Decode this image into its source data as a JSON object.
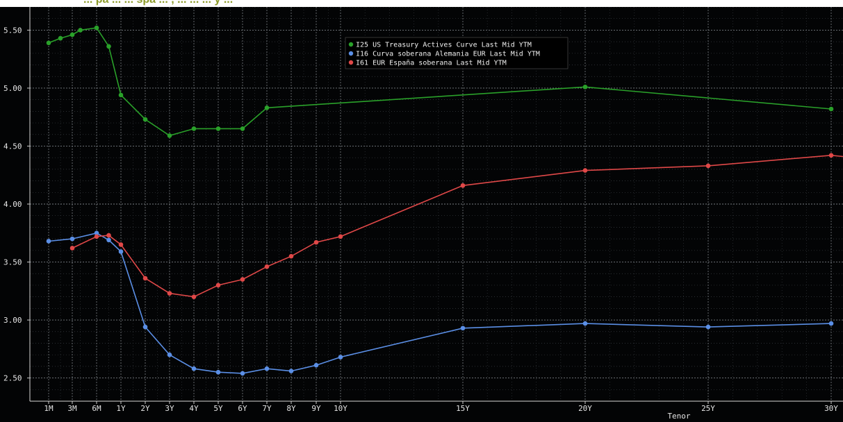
{
  "header": {
    "title_fragment": "... pa ... ... spa ... ,  ... ... ... y ..."
  },
  "chart_data": {
    "type": "line",
    "xlabel": "Tenor",
    "ylabel": "",
    "ylim": [
      2.3,
      5.7
    ],
    "yticks": [
      "5.50",
      "5.00",
      "4.50",
      "4.00",
      "3.50",
      "3.00",
      "2.50"
    ],
    "ytick_values": [
      5.5,
      5.0,
      4.5,
      4.0,
      3.5,
      3.0,
      2.5
    ],
    "xticks": [
      {
        "label": "1M",
        "t": 0.0833
      },
      {
        "label": "3M",
        "t": 0.25
      },
      {
        "label": "6M",
        "t": 0.5
      },
      {
        "label": "1Y",
        "t": 1
      },
      {
        "label": "2Y",
        "t": 2
      },
      {
        "label": "3Y",
        "t": 3
      },
      {
        "label": "4Y",
        "t": 4
      },
      {
        "label": "5Y",
        "t": 5
      },
      {
        "label": "6Y",
        "t": 6
      },
      {
        "label": "7Y",
        "t": 7
      },
      {
        "label": "8Y",
        "t": 8
      },
      {
        "label": "9Y",
        "t": 9
      },
      {
        "label": "10Y",
        "t": 10
      },
      {
        "label": "15Y",
        "t": 15
      },
      {
        "label": "20Y",
        "t": 20
      },
      {
        "label": "25Y",
        "t": 25
      },
      {
        "label": "30Y",
        "t": 30
      }
    ],
    "grid": true,
    "legend_position": "top-center",
    "series": [
      {
        "name": "I25 US Treasury Actives Curve Last Mid YTM",
        "color": "#2aa12a",
        "points": [
          [
            0.0833,
            5.39
          ],
          [
            0.1667,
            5.43
          ],
          [
            0.25,
            5.46
          ],
          [
            0.3333,
            5.5
          ],
          [
            0.5,
            5.52
          ],
          [
            0.75,
            5.36
          ],
          [
            1,
            4.94
          ],
          [
            2,
            4.73
          ],
          [
            3,
            4.59
          ],
          [
            4,
            4.65
          ],
          [
            5,
            4.65
          ],
          [
            6,
            4.65
          ],
          [
            7,
            4.83
          ],
          [
            20,
            5.01
          ],
          [
            30,
            4.82
          ]
        ]
      },
      {
        "name": "I16 Curva soberana Alemania EUR Last Mid YTM",
        "color": "#5b8fe6",
        "points": [
          [
            0.0833,
            3.68
          ],
          [
            0.25,
            3.7
          ],
          [
            0.5,
            3.75
          ],
          [
            0.75,
            3.69
          ],
          [
            1,
            3.59
          ],
          [
            2,
            2.94
          ],
          [
            3,
            2.7
          ],
          [
            4,
            2.58
          ],
          [
            5,
            2.55
          ],
          [
            6,
            2.54
          ],
          [
            7,
            2.58
          ],
          [
            8,
            2.56
          ],
          [
            9,
            2.61
          ],
          [
            10,
            2.68
          ],
          [
            15,
            2.93
          ],
          [
            20,
            2.97
          ],
          [
            25,
            2.94
          ],
          [
            30,
            2.97
          ]
        ]
      },
      {
        "name": "I61 EUR España soberana Last Mid YTM",
        "color": "#e04848",
        "points": [
          [
            0.25,
            3.62
          ],
          [
            0.5,
            3.72
          ],
          [
            0.75,
            3.73
          ],
          [
            1,
            3.65
          ],
          [
            2,
            3.36
          ],
          [
            3,
            3.23
          ],
          [
            4,
            3.2
          ],
          [
            5,
            3.3
          ],
          [
            6,
            3.35
          ],
          [
            7,
            3.46
          ],
          [
            8,
            3.55
          ],
          [
            9,
            3.67
          ],
          [
            10,
            3.72
          ],
          [
            15,
            4.16
          ],
          [
            20,
            4.29
          ],
          [
            25,
            4.33
          ],
          [
            30,
            4.42
          ]
        ]
      }
    ]
  }
}
